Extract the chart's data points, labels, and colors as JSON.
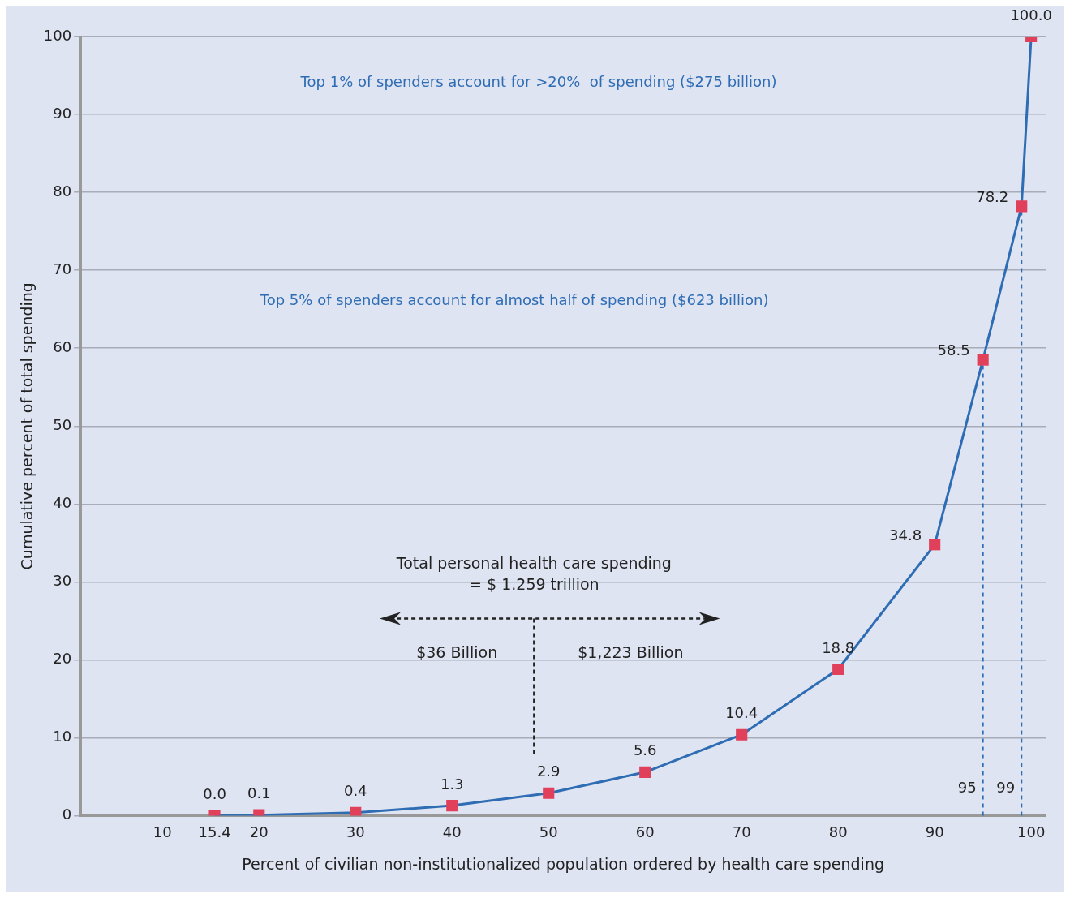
{
  "chart_data": {
    "type": "line",
    "xlabel": "Percent of civilian non-institutionalized population ordered by health care spending",
    "ylabel": "Cumulative percent of total spending",
    "x": [
      15.4,
      20,
      30,
      40,
      50,
      60,
      70,
      80,
      90,
      95,
      99,
      100
    ],
    "series": [
      {
        "color": "#2e6db4",
        "colors": [
          "#e0405a",
          "#e0405a",
          "#e0405a",
          "#e0405a",
          "#e0405a",
          "#e0405a",
          "#e0405a",
          "#e0405a",
          "#e0405a",
          "#e0405a",
          "#e0405a",
          "#e0405a"
        ],
        "values": [
          0.0,
          0.1,
          0.4,
          1.3,
          2.9,
          5.6,
          10.4,
          18.8,
          34.8,
          58.5,
          78.2,
          100.0
        ],
        "value_labels": [
          "0.0",
          "0.1",
          "0.4",
          "1.3",
          "2.9",
          "5.6",
          "10.4",
          "18.8",
          "34.8",
          "58.5",
          "78.2",
          "100.0"
        ]
      }
    ],
    "marker": "square",
    "xlim": [
      1.5,
      101.5
    ],
    "xticks": [
      10,
      {
        "value": 15.4,
        "label": "15.4"
      },
      20,
      30,
      40,
      50,
      60,
      70,
      80,
      90,
      100
    ],
    "ylim": [
      0,
      100
    ],
    "yticks": [
      0,
      10,
      20,
      30,
      40,
      50,
      60,
      70,
      80,
      90,
      100
    ],
    "grid": "y",
    "ref_lines": [
      {
        "axis": "x",
        "value": 95,
        "label": "95",
        "line_style": "dashed",
        "color": "#2e6db4"
      },
      {
        "axis": "x",
        "value": 99,
        "label": "99",
        "line_style": "dashed",
        "color": "#2e6db4"
      }
    ],
    "annotations": [
      "Top 1% of spenders account for >20%  of spending ($275 billion)",
      "Top 5% of spenders account for almost half of spending ($623 billion)",
      "Total personal health care spending\n= $ 1.259 trillion",
      "$36 Billion",
      "$1,223 Billion"
    ]
  }
}
